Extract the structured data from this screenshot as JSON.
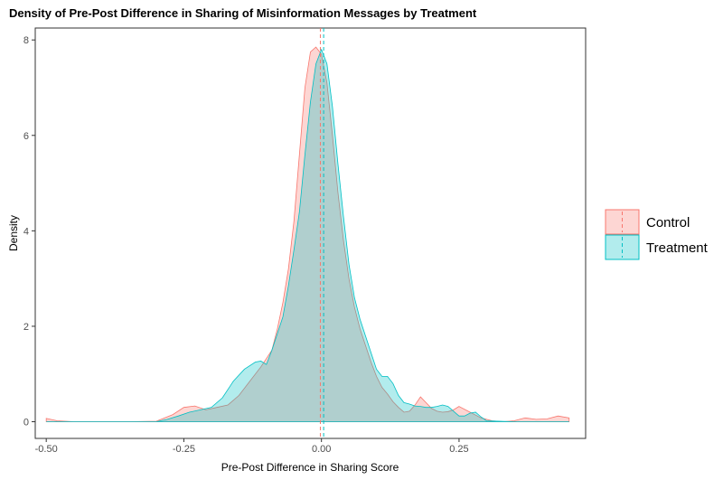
{
  "chart_data": {
    "type": "area",
    "title": "Density of Pre-Post Difference in Sharing of Misinformation Messages by Treatment",
    "xlabel": "Pre-Post Difference in Sharing Score",
    "ylabel": "Density",
    "xlim": [
      -0.52,
      0.48
    ],
    "ylim": [
      -0.35,
      8.25
    ],
    "x_ticks": [
      -0.5,
      -0.25,
      0.0,
      0.25
    ],
    "x_tick_labels": [
      "-0.50",
      "-0.25",
      "0.00",
      "0.25"
    ],
    "y_ticks": [
      0,
      2,
      4,
      6,
      8
    ],
    "y_tick_labels": [
      "0",
      "2",
      "4",
      "6",
      "8"
    ],
    "grid": false,
    "legend_position": "right",
    "series": [
      {
        "name": "Control",
        "fill": "#F8766D",
        "line": "#F8766D",
        "mean": -0.002,
        "x": [
          -0.5,
          -0.48,
          -0.45,
          -0.4,
          -0.35,
          -0.3,
          -0.27,
          -0.25,
          -0.23,
          -0.21,
          -0.19,
          -0.17,
          -0.15,
          -0.13,
          -0.11,
          -0.09,
          -0.08,
          -0.07,
          -0.06,
          -0.05,
          -0.04,
          -0.03,
          -0.02,
          -0.01,
          0.0,
          0.01,
          0.02,
          0.03,
          0.04,
          0.05,
          0.06,
          0.07,
          0.08,
          0.09,
          0.1,
          0.11,
          0.12,
          0.13,
          0.14,
          0.15,
          0.16,
          0.17,
          0.18,
          0.19,
          0.2,
          0.21,
          0.22,
          0.23,
          0.24,
          0.25,
          0.27,
          0.29,
          0.31,
          0.33,
          0.35,
          0.37,
          0.39,
          0.41,
          0.43,
          0.45
        ],
        "values": [
          0.07,
          0.02,
          0.0,
          0.0,
          0.0,
          0.01,
          0.15,
          0.3,
          0.33,
          0.25,
          0.3,
          0.35,
          0.55,
          0.85,
          1.15,
          1.5,
          1.95,
          2.5,
          3.2,
          4.2,
          5.6,
          7.0,
          7.75,
          7.85,
          7.7,
          7.1,
          6.0,
          4.8,
          3.8,
          3.0,
          2.4,
          1.95,
          1.6,
          1.25,
          0.95,
          0.72,
          0.58,
          0.42,
          0.3,
          0.2,
          0.22,
          0.35,
          0.52,
          0.4,
          0.28,
          0.22,
          0.2,
          0.21,
          0.25,
          0.32,
          0.2,
          0.08,
          0.02,
          0.0,
          0.02,
          0.08,
          0.05,
          0.06,
          0.12,
          0.08
        ]
      },
      {
        "name": "Treatment",
        "fill": "#00BFC4",
        "line": "#00BFC4",
        "mean": 0.004,
        "x": [
          -0.5,
          -0.45,
          -0.4,
          -0.35,
          -0.3,
          -0.28,
          -0.26,
          -0.24,
          -0.22,
          -0.2,
          -0.18,
          -0.16,
          -0.14,
          -0.12,
          -0.11,
          -0.1,
          -0.09,
          -0.08,
          -0.07,
          -0.06,
          -0.05,
          -0.04,
          -0.03,
          -0.02,
          -0.01,
          0.0,
          0.01,
          0.02,
          0.03,
          0.04,
          0.05,
          0.06,
          0.07,
          0.08,
          0.09,
          0.1,
          0.11,
          0.12,
          0.13,
          0.14,
          0.15,
          0.16,
          0.17,
          0.18,
          0.19,
          0.2,
          0.21,
          0.22,
          0.23,
          0.24,
          0.25,
          0.26,
          0.27,
          0.28,
          0.29,
          0.3,
          0.35,
          0.4,
          0.45
        ],
        "values": [
          0.0,
          0.0,
          0.0,
          0.0,
          0.0,
          0.05,
          0.12,
          0.2,
          0.25,
          0.3,
          0.5,
          0.85,
          1.1,
          1.25,
          1.27,
          1.2,
          1.5,
          1.85,
          2.2,
          2.85,
          3.6,
          4.4,
          5.6,
          6.7,
          7.5,
          7.8,
          7.5,
          6.6,
          5.4,
          4.3,
          3.3,
          2.6,
          2.15,
          1.8,
          1.45,
          1.1,
          0.95,
          0.95,
          0.8,
          0.55,
          0.4,
          0.37,
          0.33,
          0.32,
          0.3,
          0.3,
          0.32,
          0.35,
          0.32,
          0.22,
          0.12,
          0.12,
          0.18,
          0.2,
          0.1,
          0.02,
          0.0,
          0.0,
          0.0
        ]
      }
    ]
  }
}
